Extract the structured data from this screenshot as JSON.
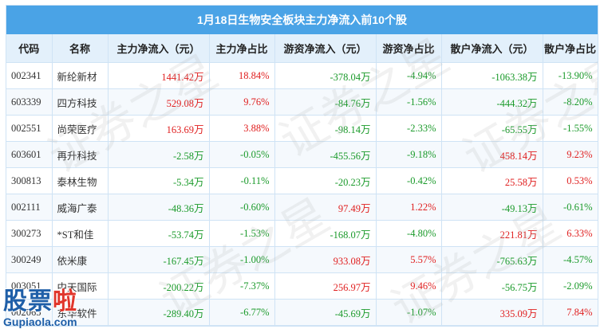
{
  "title": "1月18日生物安全板块主力净流入前10个股",
  "columns": [
    "代码",
    "名称",
    "主力净流入（元）",
    "主力净占比",
    "游资净流入（元）",
    "游资净占比",
    "散户净流入（元）",
    "散户净占比"
  ],
  "rows": [
    [
      "002341",
      "新纶新材",
      "1441.42万",
      "18.84%",
      "-378.04万",
      "-4.94%",
      "-1063.38万",
      "-13.90%"
    ],
    [
      "603339",
      "四方科技",
      "529.08万",
      "9.76%",
      "-84.76万",
      "-1.56%",
      "-444.32万",
      "-8.20%"
    ],
    [
      "002551",
      "尚荣医疗",
      "163.69万",
      "3.88%",
      "-98.14万",
      "-2.33%",
      "-65.55万",
      "-1.55%"
    ],
    [
      "603601",
      "再升科技",
      "-2.58万",
      "-0.05%",
      "-455.56万",
      "-9.18%",
      "458.14万",
      "9.23%"
    ],
    [
      "300813",
      "泰林生物",
      "-5.34万",
      "-0.11%",
      "-20.23万",
      "-0.42%",
      "25.58万",
      "0.53%"
    ],
    [
      "002111",
      "威海广泰",
      "-48.36万",
      "-0.60%",
      "97.49万",
      "1.22%",
      "-49.13万",
      "-0.61%"
    ],
    [
      "300273",
      "*ST和佳",
      "-53.74万",
      "-1.53%",
      "-168.07万",
      "-4.80%",
      "221.81万",
      "6.33%"
    ],
    [
      "300249",
      "依米康",
      "-167.45万",
      "-1.00%",
      "933.08万",
      "5.57%",
      "-765.63万",
      "-4.57%"
    ],
    [
      "003051",
      "中天国际",
      "-200.22万",
      "-7.37%",
      "256.97万",
      "9.46%",
      "-56.75万",
      "-2.09%"
    ],
    [
      "002065",
      "东华软件",
      "-289.40万",
      "-6.77%",
      "-45.69万",
      "-1.07%",
      "335.09万",
      "7.84%"
    ]
  ],
  "watermark_text": "证券之星",
  "logo": {
    "chars": "股票啦",
    "url": "Gupiaola.com"
  },
  "colors": {
    "header_bar": "#4aa3e6",
    "header_row": "#e3f0fb",
    "positive": "#e02020",
    "negative": "#1a9a2a",
    "grid": "#cfe3f5"
  }
}
